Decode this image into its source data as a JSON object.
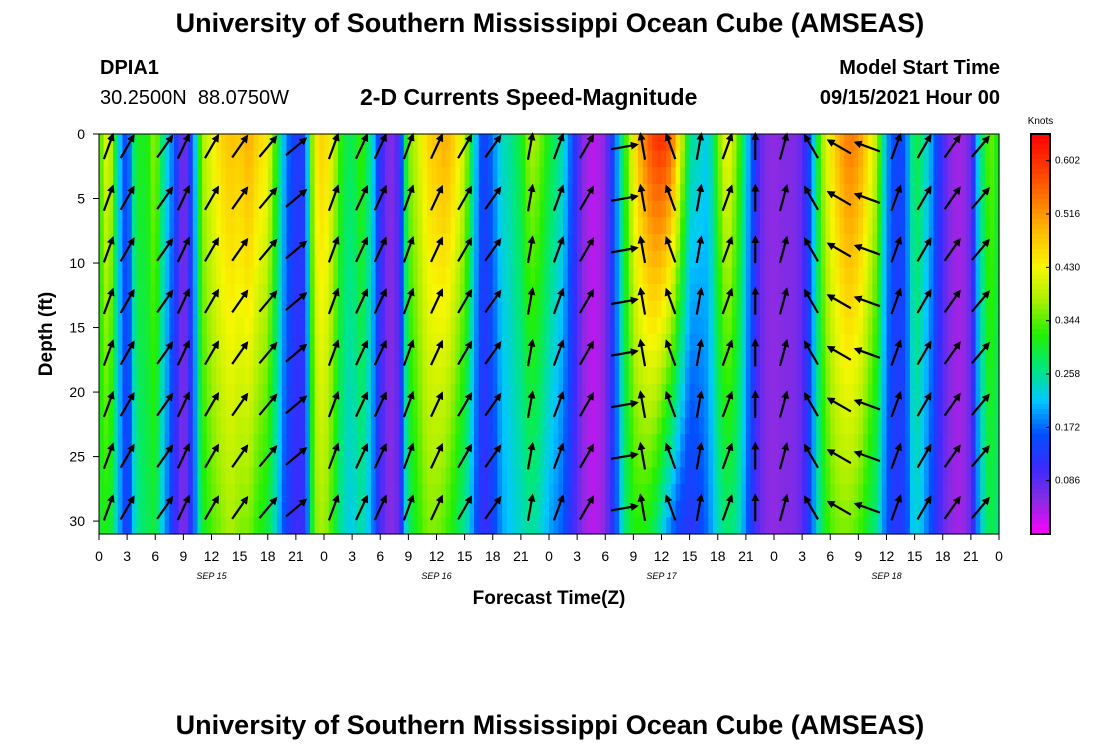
{
  "header": {
    "top_title": "University of Southern Mississippi Ocean Cube (AMSEAS)",
    "bottom_title": "University of Southern Mississippi Ocean Cube (AMSEAS)",
    "station_id": "DPIA1",
    "coords": "30.2500N  88.0750W",
    "plot_title": "2-D Currents Speed-Magnitude",
    "model_start_label": "Model Start Time",
    "model_start_time": "09/15/2021 Hour 00"
  },
  "colors": {
    "scale": [
      "#ff00ff",
      "#8a2be2",
      "#3a2bff",
      "#0050ff",
      "#00c8ff",
      "#00e87a",
      "#22f000",
      "#a8f000",
      "#f7f700",
      "#ffc000",
      "#ff7a00",
      "#ff3800",
      "#ff0000"
    ],
    "arrow": "#000000",
    "axis": "#000000"
  },
  "chart_data": {
    "type": "heatmap",
    "xlabel": "Forecast Time(Z)",
    "ylabel": "Depth (ft)",
    "x_ticks": [
      "0",
      "3",
      "6",
      "9",
      "12",
      "15",
      "18",
      "21",
      "0",
      "3",
      "6",
      "9",
      "12",
      "15",
      "18",
      "21",
      "0",
      "3",
      "6",
      "9",
      "12",
      "15",
      "18",
      "21",
      "0",
      "3",
      "6",
      "9",
      "12",
      "15",
      "18",
      "21",
      "0"
    ],
    "xlim_hours": [
      0,
      96
    ],
    "y_ticks": [
      "0",
      "5",
      "10",
      "15",
      "20",
      "25",
      "30"
    ],
    "ylim": [
      0,
      31
    ],
    "y_inverted": true,
    "day_labels": [
      {
        "label": "SEP 15",
        "hour": 12
      },
      {
        "label": "SEP 16",
        "hour": 36
      },
      {
        "label": "SEP 17",
        "hour": 60
      },
      {
        "label": "SEP 18",
        "hour": 84
      }
    ],
    "colorbar": {
      "title": "Knots",
      "ticks": [
        "0.602",
        "0.516",
        "0.430",
        "0.344",
        "0.258",
        "0.172",
        "0.086"
      ],
      "tick_values": [
        0.602,
        0.516,
        0.43,
        0.344,
        0.258,
        0.172,
        0.086
      ],
      "range": [
        0.0,
        0.645
      ]
    },
    "speed_profile": {
      "hours": [
        0,
        1,
        2,
        3,
        4,
        5,
        6,
        7,
        8,
        9,
        10,
        11,
        12,
        13,
        14,
        15,
        16,
        17,
        18,
        19,
        20,
        21,
        22,
        23,
        24,
        25,
        26,
        27,
        28,
        29,
        30,
        31,
        32,
        33,
        34,
        35,
        36,
        37,
        38,
        39,
        40,
        41,
        42,
        43,
        44,
        45,
        46,
        47,
        48,
        49,
        50,
        51,
        52,
        53,
        54,
        55,
        56,
        57,
        58,
        59,
        60,
        61,
        62,
        63,
        64,
        65,
        66,
        67,
        68,
        69,
        70,
        71,
        72,
        73,
        74,
        75,
        76,
        77,
        78,
        79,
        80,
        81,
        82,
        83,
        84,
        85,
        86,
        87,
        88,
        89,
        90,
        91,
        92,
        93,
        94,
        95,
        96
      ],
      "surface_knots": [
        0.32,
        0.44,
        0.24,
        0.13,
        0.32,
        0.3,
        0.38,
        0.24,
        0.17,
        0.05,
        0.16,
        0.38,
        0.42,
        0.46,
        0.48,
        0.47,
        0.5,
        0.46,
        0.44,
        0.3,
        0.18,
        0.13,
        0.14,
        0.44,
        0.47,
        0.4,
        0.3,
        0.28,
        0.34,
        0.25,
        0.12,
        0.05,
        0.1,
        0.36,
        0.4,
        0.46,
        0.48,
        0.5,
        0.46,
        0.4,
        0.24,
        0.13,
        0.18,
        0.24,
        0.26,
        0.3,
        0.38,
        0.36,
        0.3,
        0.27,
        0.2,
        0.1,
        0.04,
        0.03,
        0.06,
        0.16,
        0.3,
        0.44,
        0.52,
        0.58,
        0.6,
        0.56,
        0.42,
        0.26,
        0.24,
        0.22,
        0.34,
        0.44,
        0.36,
        0.24,
        0.12,
        0.06,
        0.05,
        0.06,
        0.06,
        0.08,
        0.18,
        0.36,
        0.44,
        0.5,
        0.54,
        0.52,
        0.46,
        0.38,
        0.2,
        0.14,
        0.16,
        0.3,
        0.26,
        0.18,
        0.1,
        0.05,
        0.04,
        0.08,
        0.26,
        0.36,
        0.3
      ],
      "bottom_knots": [
        0.3,
        0.32,
        0.22,
        0.12,
        0.26,
        0.28,
        0.3,
        0.2,
        0.12,
        0.05,
        0.14,
        0.3,
        0.34,
        0.36,
        0.38,
        0.36,
        0.36,
        0.32,
        0.3,
        0.22,
        0.14,
        0.1,
        0.12,
        0.36,
        0.38,
        0.32,
        0.24,
        0.22,
        0.26,
        0.2,
        0.1,
        0.05,
        0.08,
        0.28,
        0.32,
        0.36,
        0.36,
        0.34,
        0.3,
        0.26,
        0.18,
        0.1,
        0.14,
        0.2,
        0.22,
        0.24,
        0.26,
        0.24,
        0.2,
        0.18,
        0.14,
        0.08,
        0.04,
        0.03,
        0.06,
        0.14,
        0.26,
        0.32,
        0.32,
        0.3,
        0.24,
        0.18,
        0.14,
        0.12,
        0.14,
        0.18,
        0.24,
        0.28,
        0.26,
        0.18,
        0.1,
        0.06,
        0.05,
        0.06,
        0.06,
        0.08,
        0.16,
        0.28,
        0.34,
        0.36,
        0.36,
        0.34,
        0.3,
        0.26,
        0.16,
        0.12,
        0.14,
        0.24,
        0.2,
        0.14,
        0.08,
        0.05,
        0.04,
        0.08,
        0.22,
        0.3,
        0.26
      ]
    },
    "vector_depths_ft": [
      1,
      5,
      9,
      13,
      17,
      21,
      25,
      29
    ],
    "vectors": [
      {
        "hour": 1,
        "dir_deg": 20
      },
      {
        "hour": 3,
        "dir_deg": 30
      },
      {
        "hour": 7,
        "dir_deg": 35
      },
      {
        "hour": 9,
        "dir_deg": 25
      },
      {
        "hour": 12,
        "dir_deg": 30
      },
      {
        "hour": 15,
        "dir_deg": 35
      },
      {
        "hour": 18,
        "dir_deg": 40
      },
      {
        "hour": 21,
        "dir_deg": 50
      },
      {
        "hour": 25,
        "dir_deg": 20
      },
      {
        "hour": 28,
        "dir_deg": 25
      },
      {
        "hour": 30,
        "dir_deg": 25
      },
      {
        "hour": 33,
        "dir_deg": 20
      },
      {
        "hour": 36,
        "dir_deg": 25
      },
      {
        "hour": 39,
        "dir_deg": 30
      },
      {
        "hour": 42,
        "dir_deg": 35
      },
      {
        "hour": 46,
        "dir_deg": 10
      },
      {
        "hour": 49,
        "dir_deg": 20
      },
      {
        "hour": 52,
        "dir_deg": 30
      },
      {
        "hour": 56,
        "dir_deg": 80
      },
      {
        "hour": 58,
        "dir_deg": -10
      },
      {
        "hour": 61,
        "dir_deg": -20
      },
      {
        "hour": 64,
        "dir_deg": 10
      },
      {
        "hour": 67,
        "dir_deg": 20
      },
      {
        "hour": 70,
        "dir_deg": 0
      },
      {
        "hour": 73,
        "dir_deg": 15
      },
      {
        "hour": 76,
        "dir_deg": -30
      },
      {
        "hour": 79,
        "dir_deg": -60
      },
      {
        "hour": 82,
        "dir_deg": -70
      },
      {
        "hour": 85,
        "dir_deg": 20
      },
      {
        "hour": 88,
        "dir_deg": 30
      },
      {
        "hour": 91,
        "dir_deg": 35
      },
      {
        "hour": 94,
        "dir_deg": 40
      }
    ]
  }
}
